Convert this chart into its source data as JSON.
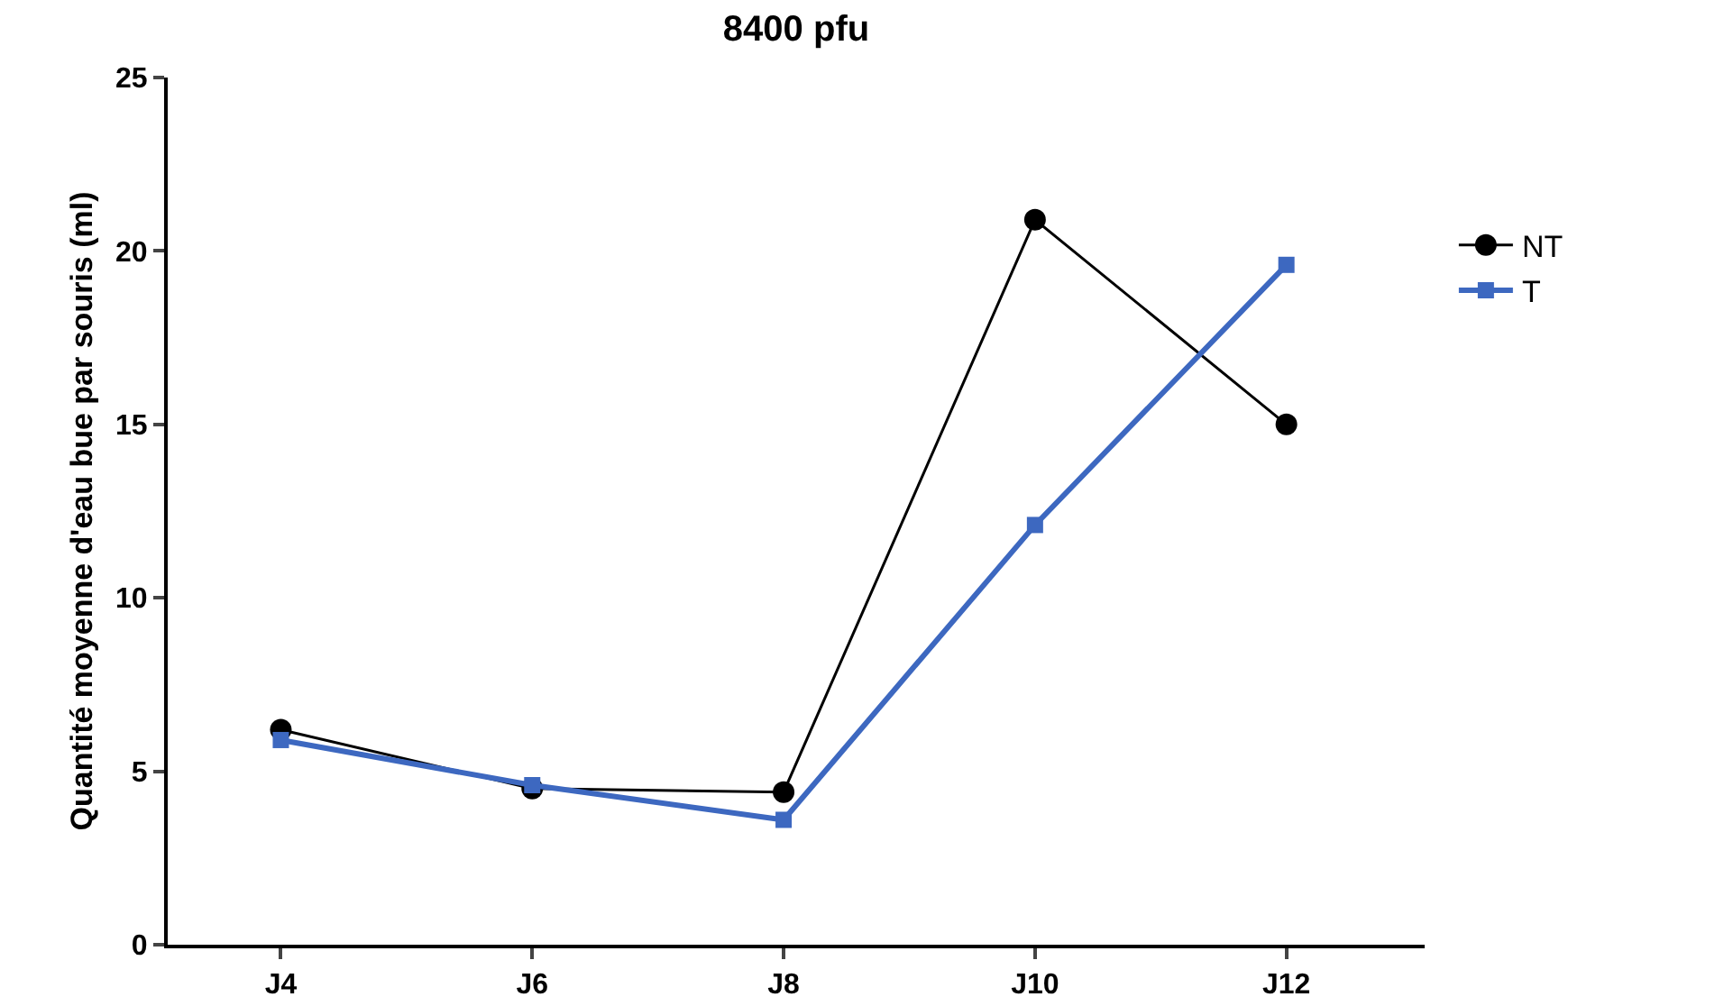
{
  "chart_data": {
    "type": "line",
    "title": "8400 pfu",
    "ylabel": "Quantité moyenne d'eau bue par souris (ml)",
    "categories": [
      "J4",
      "J6",
      "J8",
      "J10",
      "J12"
    ],
    "series": [
      {
        "name": "NT",
        "color": "#000000",
        "marker": "circle",
        "values": [
          6.2,
          4.5,
          4.4,
          20.9,
          15.0
        ]
      },
      {
        "name": "T",
        "color": "#3d68c0",
        "marker": "square",
        "values": [
          5.9,
          4.6,
          3.6,
          12.1,
          19.6
        ]
      }
    ],
    "ylim": [
      0,
      25
    ],
    "yticks": [
      0,
      5,
      10,
      15,
      20,
      25
    ],
    "grid": false,
    "legend": "right",
    "line_style": "solid"
  }
}
